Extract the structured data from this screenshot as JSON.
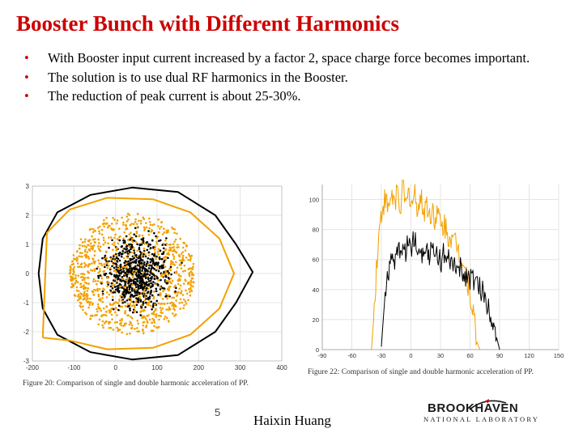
{
  "slide": {
    "title": "Booster Bunch with Different Harmonics",
    "bullets": [
      "With Booster input current increased by a factor 2, space charge force becomes important.",
      "The solution is to use dual RF harmonics in the Booster.",
      "The reduction of peak current is about 25-30%."
    ],
    "page_number": "5",
    "author": "Haixin Huang",
    "logo": {
      "name": "BROOKHAVEN",
      "subtitle": "NATIONAL LABORATORY"
    }
  },
  "colors": {
    "title": "#cc0000",
    "single_harmonic": "#000000",
    "double_harmonic": "#f2a100"
  },
  "chart_data": [
    {
      "type": "scatter",
      "caption": "Figure 20: Comparison of single and double harmonic acceleration of PP.",
      "xlim": [
        -200,
        400
      ],
      "ylim": [
        -3,
        3
      ],
      "xticks": [
        "-200",
        "-100",
        "0",
        "100",
        "200",
        "300",
        "400"
      ],
      "yticks": [
        "3",
        "2",
        "1",
        "0",
        "-1",
        "-2",
        "-3"
      ],
      "grid": true,
      "series": [
        {
          "color": "#000000",
          "marker": "separatrix",
          "points": [
            [
              -185,
              0
            ],
            [
              -175,
              1.2
            ],
            [
              -140,
              2.1
            ],
            [
              -60,
              2.7
            ],
            [
              40,
              2.95
            ],
            [
              150,
              2.8
            ],
            [
              240,
              2.0
            ],
            [
              290,
              1.0
            ],
            [
              330,
              0.05
            ],
            [
              290,
              -1.0
            ],
            [
              240,
              -2.0
            ],
            [
              150,
              -2.8
            ],
            [
              40,
              -2.95
            ],
            [
              -60,
              -2.7
            ],
            [
              -140,
              -2.1
            ],
            [
              -175,
              -1.2
            ],
            [
              -185,
              0
            ]
          ]
        },
        {
          "color": "#f2a100",
          "marker": "bucket",
          "points": [
            [
              -175,
              -2.2
            ],
            [
              -165,
              1.4
            ],
            [
              -110,
              2.2
            ],
            [
              -20,
              2.6
            ],
            [
              90,
              2.55
            ],
            [
              180,
              2.1
            ],
            [
              250,
              1.2
            ],
            [
              285,
              0
            ],
            [
              250,
              -1.2
            ],
            [
              180,
              -2.1
            ],
            [
              90,
              -2.55
            ],
            [
              -20,
              -2.6
            ],
            [
              -110,
              -2.3
            ],
            [
              -175,
              -2.2
            ]
          ]
        }
      ]
    },
    {
      "type": "line",
      "caption": "Figure 22: Comparison of single and double harmonic acceleration of PP.",
      "xlim": [
        -90,
        150
      ],
      "ylim": [
        0,
        110
      ],
      "xticks": [
        "-90",
        "-60",
        "-30",
        "0",
        "30",
        "60",
        "90",
        "120",
        "150"
      ],
      "yticks": [
        "100",
        "80",
        "60",
        "40",
        "20",
        "0"
      ],
      "grid": true,
      "series": [
        {
          "color": "#000000",
          "x": [
            -30,
            -27,
            -24,
            -21,
            -18,
            -15,
            -12,
            -9,
            -6,
            -3,
            0,
            3,
            6,
            9,
            12,
            15,
            18,
            21,
            24,
            27,
            30,
            33,
            36,
            39,
            42,
            45,
            48,
            51,
            54,
            57,
            60,
            63,
            66,
            69,
            72,
            75,
            78,
            81,
            84,
            87,
            90
          ],
          "values": [
            2,
            30,
            50,
            56,
            62,
            60,
            65,
            70,
            63,
            72,
            68,
            75,
            66,
            70,
            64,
            73,
            62,
            68,
            60,
            66,
            58,
            63,
            56,
            60,
            54,
            58,
            50,
            55,
            48,
            52,
            45,
            48,
            44,
            42,
            40,
            35,
            30,
            25,
            18,
            8,
            0
          ]
        },
        {
          "color": "#f2a100",
          "x": [
            -40,
            -38,
            -35,
            -32,
            -29,
            -26,
            -23,
            -20,
            -17,
            -14,
            -11,
            -8,
            -5,
            -2,
            1,
            4,
            7,
            10,
            13,
            16,
            19,
            22,
            25,
            28,
            31,
            34,
            37,
            40,
            43,
            46,
            49,
            52,
            55,
            58,
            61,
            64,
            67,
            70
          ],
          "values": [
            0,
            20,
            55,
            80,
            95,
            100,
            92,
            104,
            98,
            106,
            96,
            108,
            94,
            105,
            97,
            103,
            95,
            100,
            92,
            98,
            88,
            95,
            85,
            90,
            80,
            84,
            75,
            78,
            70,
            72,
            65,
            60,
            55,
            45,
            35,
            20,
            5,
            0
          ]
        }
      ]
    }
  ]
}
